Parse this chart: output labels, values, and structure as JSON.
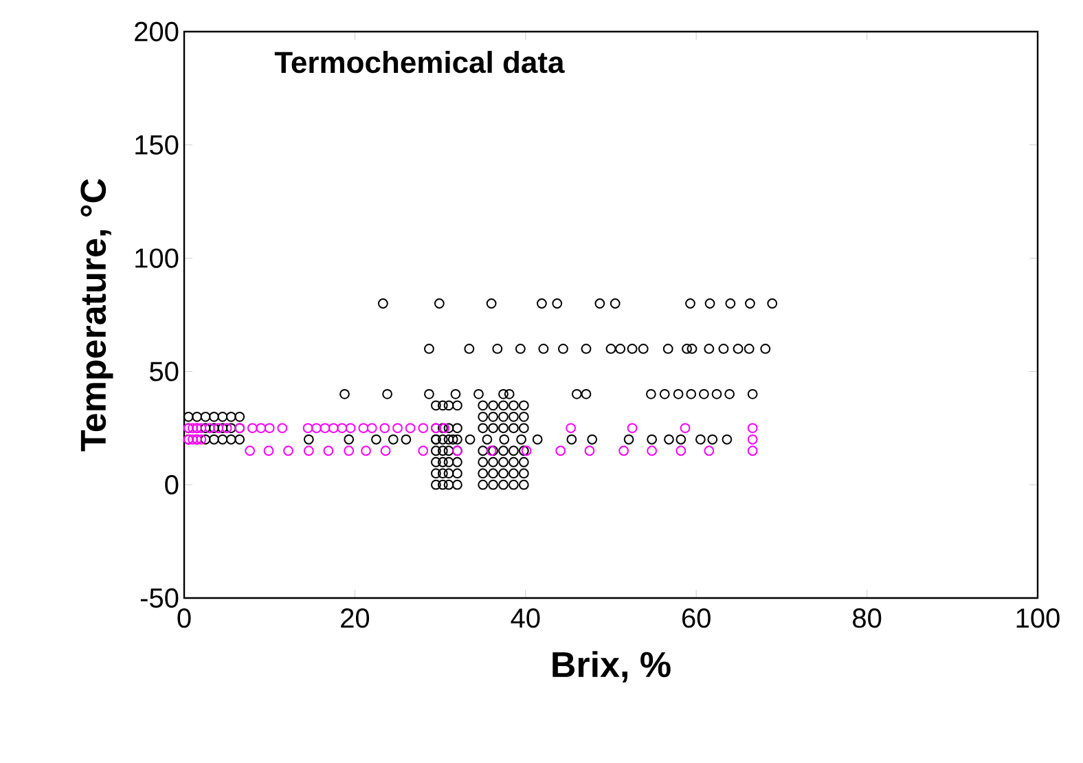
{
  "chart_data": {
    "type": "scatter",
    "title": "Termochemical data",
    "xlabel": "Brix, %",
    "ylabel": "Temperature, °C",
    "xlim": [
      0,
      100
    ],
    "ylim": [
      -50,
      200
    ],
    "xticks": [
      0,
      20,
      40,
      60,
      80,
      100
    ],
    "yticks": [
      -50,
      0,
      50,
      100,
      150,
      200
    ],
    "grid": false,
    "marker": "circle",
    "series": [
      {
        "color": "#000000",
        "x": [
          23.3,
          29.9,
          36.0,
          41.9,
          43.7,
          48.7,
          50.5,
          59.3,
          61.6,
          64.0,
          66.3,
          68.9,
          28.7,
          33.4,
          36.7,
          39.4,
          42.1,
          44.4,
          47.1,
          50.0,
          51.1,
          52.5,
          53.8,
          56.7,
          58.9,
          59.5,
          61.5,
          63.2,
          64.9,
          66.2,
          68.1,
          18.8,
          23.8,
          28.7,
          31.8,
          34.5,
          37.4,
          38.1,
          46.0,
          47.1,
          54.7,
          56.3,
          57.9,
          59.4,
          60.9,
          62.4,
          63.9,
          66.6,
          14.6,
          19.3,
          22.5,
          24.5,
          26.0,
          29.5,
          31.5,
          33.5,
          35.5,
          37.5,
          39.5,
          41.4,
          45.4,
          47.8,
          52.1,
          54.8,
          56.8,
          58.2,
          60.5,
          61.9,
          63.6,
          0.5,
          1.5,
          2.5,
          3.5,
          4.5,
          5.5,
          6.5,
          0.5,
          1.5,
          2.5,
          3.5,
          4.5,
          5.5,
          6.5,
          0.5,
          1.5,
          2.5,
          3.5,
          4.5,
          5.5,
          6.5,
          29.5,
          30.3,
          31.0,
          32.0,
          29.5,
          30.3,
          31.0,
          32.0,
          29.5,
          30.3,
          31.0,
          32.0,
          29.5,
          30.3,
          31.0,
          32.0,
          29.5,
          30.3,
          31.0,
          32.0,
          29.5,
          30.3,
          31.0,
          32.0,
          29.5,
          30.3,
          31.0,
          32.0,
          35.0,
          36.2,
          37.4,
          38.6,
          39.8,
          35.0,
          36.2,
          37.4,
          38.6,
          39.8,
          35.0,
          36.2,
          37.4,
          38.6,
          39.8,
          35.0,
          36.2,
          37.4,
          38.6,
          39.8,
          35.0,
          36.2,
          37.4,
          38.6,
          39.8,
          35.0,
          36.2,
          37.4,
          38.6,
          39.8,
          35.0,
          36.2,
          37.4,
          38.6,
          39.8
        ],
        "values": [
          80,
          80,
          80,
          80,
          80,
          80,
          80,
          80,
          80,
          80,
          80,
          80,
          60,
          60,
          60,
          60,
          60,
          60,
          60,
          60,
          60,
          60,
          60,
          60,
          60,
          60,
          60,
          60,
          60,
          60,
          60,
          40,
          40,
          40,
          40,
          40,
          40,
          40,
          40,
          40,
          40,
          40,
          40,
          40,
          40,
          40,
          40,
          40,
          20,
          20,
          20,
          20,
          20,
          20,
          20,
          20,
          20,
          20,
          20,
          20,
          20,
          20,
          20,
          20,
          20,
          20,
          20,
          20,
          20,
          20,
          20,
          20,
          20,
          20,
          20,
          20,
          25,
          25,
          25,
          25,
          25,
          25,
          25,
          30,
          30,
          30,
          30,
          30,
          30,
          30,
          0,
          0,
          0,
          0,
          5,
          5,
          5,
          5,
          10,
          10,
          10,
          10,
          15,
          15,
          15,
          15,
          20,
          20,
          20,
          20,
          25,
          25,
          25,
          25,
          35,
          35,
          35,
          35,
          0,
          0,
          0,
          0,
          0,
          5,
          5,
          5,
          5,
          5,
          10,
          10,
          10,
          10,
          10,
          15,
          15,
          15,
          15,
          15,
          25,
          25,
          25,
          25,
          25,
          30,
          30,
          30,
          30,
          30,
          35,
          35,
          35,
          35,
          35
        ]
      },
      {
        "color": "#ff00ff",
        "x": [
          0.5,
          1.0,
          1.5,
          2.0,
          3.0,
          4.0,
          5.0,
          6.5,
          8.0,
          9.0,
          10.0,
          11.5,
          14.5,
          15.5,
          16.5,
          17.5,
          18.5,
          19.5,
          21.0,
          22.0,
          23.5,
          25.0,
          26.5,
          28.0,
          29.5,
          30.5,
          45.3,
          52.5,
          58.7,
          66.6,
          66.6,
          7.7,
          9.9,
          12.2,
          14.6,
          16.9,
          19.3,
          21.3,
          23.6,
          28.0,
          32.0,
          36.0,
          40.1,
          44.1,
          47.5,
          51.5,
          54.8,
          58.2,
          61.5,
          66.6,
          0.5,
          1.0,
          1.5,
          2.0
        ],
        "values": [
          25,
          25,
          25,
          25,
          25,
          25,
          25,
          25,
          25,
          25,
          25,
          25,
          25,
          25,
          25,
          25,
          25,
          25,
          25,
          25,
          25,
          25,
          25,
          25,
          25,
          25,
          25,
          25,
          25,
          25,
          20,
          15,
          15,
          15,
          15,
          15,
          15,
          15,
          15,
          15,
          15,
          15,
          15,
          15,
          15,
          15,
          15,
          15,
          15,
          15,
          20,
          20,
          20,
          20
        ]
      }
    ]
  }
}
